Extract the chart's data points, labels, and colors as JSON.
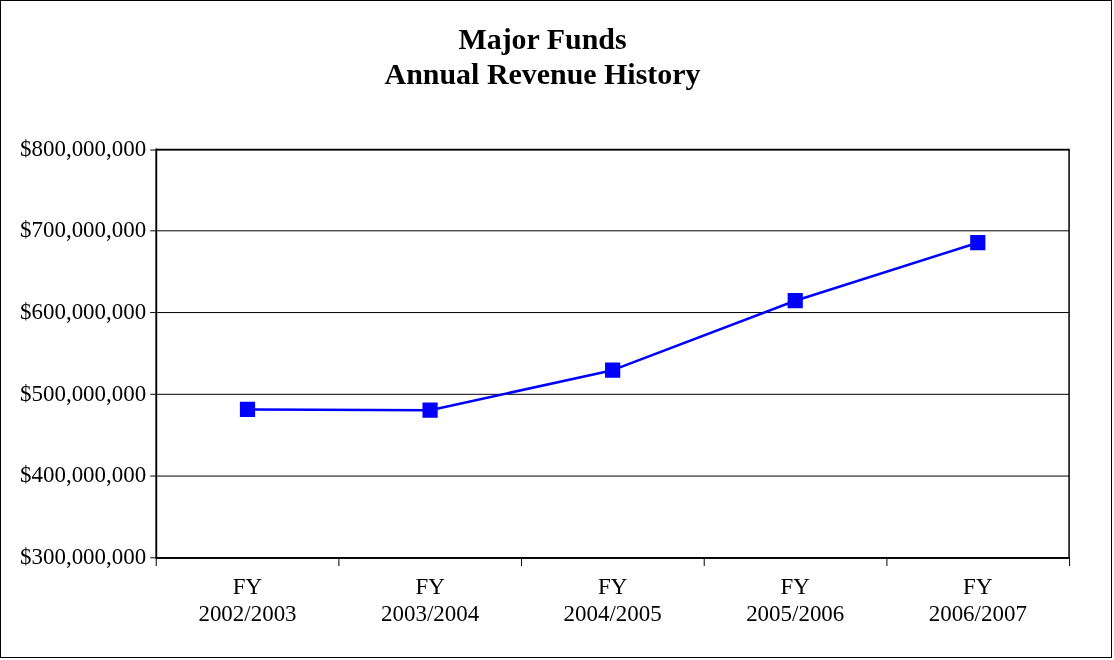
{
  "chart_data": {
    "type": "line",
    "title": "Major Funds",
    "subtitle": "Annual Revenue History",
    "categories": [
      "FY 2002/2003",
      "FY 2003/2004",
      "FY 2004/2005",
      "FY 2005/2006",
      "FY 2006/2007"
    ],
    "series": [
      {
        "color": "#0000ff",
        "values": [
          482000000,
          481000000,
          530000000,
          615000000,
          686000000
        ]
      }
    ],
    "ylim": [
      300000000,
      800000000
    ],
    "yticks": [
      {
        "value": 300000000,
        "label": "$300,000,000"
      },
      {
        "value": 400000000,
        "label": "$400,000,000"
      },
      {
        "value": 500000000,
        "label": "$500,000,000"
      },
      {
        "value": 600000000,
        "label": "$600,000,000"
      },
      {
        "value": 700000000,
        "label": "$700,000,000"
      },
      {
        "value": 800000000,
        "label": "$800,000,000"
      }
    ],
    "grid": "y",
    "legend": false,
    "marker": "square",
    "line_style": "solid"
  }
}
